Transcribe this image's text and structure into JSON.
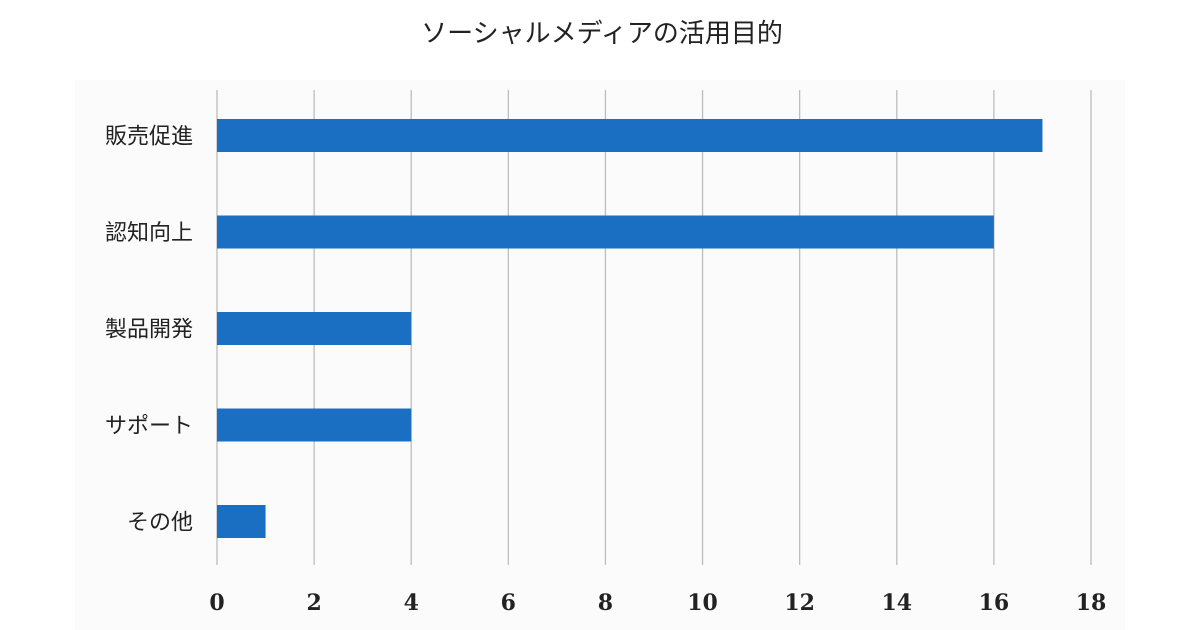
{
  "chart_data": {
    "type": "bar",
    "orientation": "horizontal",
    "title": "ソーシャルメディアの活用目的",
    "categories": [
      "販売促進",
      "認知向上",
      "製品開発",
      "サポート",
      "その他"
    ],
    "values": [
      17,
      16,
      4,
      4,
      1
    ],
    "xlim": [
      0,
      18
    ],
    "xticks": [
      "0",
      "2",
      "4",
      "6",
      "8",
      "10",
      "12",
      "14",
      "16",
      "18"
    ],
    "grid": "vertical",
    "legend": "none"
  },
  "colors": {
    "bar": "#1b6fc2",
    "grid": "#bdbdbd",
    "text": "#222222"
  }
}
